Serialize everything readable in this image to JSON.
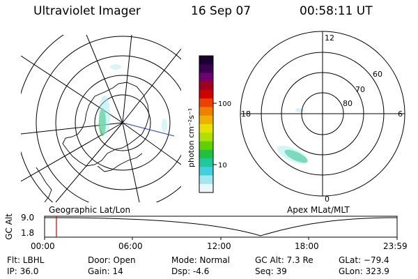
{
  "header": {
    "instrument": "Ultraviolet Imager",
    "date": "16 Sep 07",
    "time": "00:58:11 UT"
  },
  "colorbar": {
    "unit_label": "photon cm⁻²s⁻¹",
    "ticks": [
      "100",
      "10"
    ],
    "colors": [
      "#1a0030",
      "#3a0050",
      "#700070",
      "#a00020",
      "#d00000",
      "#f04000",
      "#f08000",
      "#f0b000",
      "#e8e000",
      "#b0e000",
      "#60d000",
      "#20c040",
      "#20c8a0",
      "#40d0e0",
      "#a0e8f0",
      "#e8f8fc"
    ]
  },
  "left_map": {
    "label": "Geographic Lat/Lon"
  },
  "right_map": {
    "label": "Apex MLat/MLT",
    "mlt_labels": {
      "top": "12",
      "left": "18",
      "right": "6",
      "bottom": "0"
    },
    "lat_labels": [
      "60",
      "70",
      "80"
    ]
  },
  "altitude_plot": {
    "ylabel": "GC Alt",
    "yticks": [
      "9.0",
      "1.8"
    ],
    "xticks": [
      "00:00",
      "06:00",
      "12:00",
      "18:00",
      "23:59"
    ],
    "marker_color": "#d00000"
  },
  "info": {
    "flt": "Flt: LBHL",
    "ip": "IP: 36.0",
    "door": "Door: Open",
    "gain": "Gain: 14",
    "mode": "Mode: Normal",
    "dsp": "Dsp:    -4.6",
    "gcalt": "GC Alt: 7.3 Re",
    "seq": "Seq: 39",
    "glat": "GLat: −79.4",
    "glon": "GLon: 323.9"
  }
}
